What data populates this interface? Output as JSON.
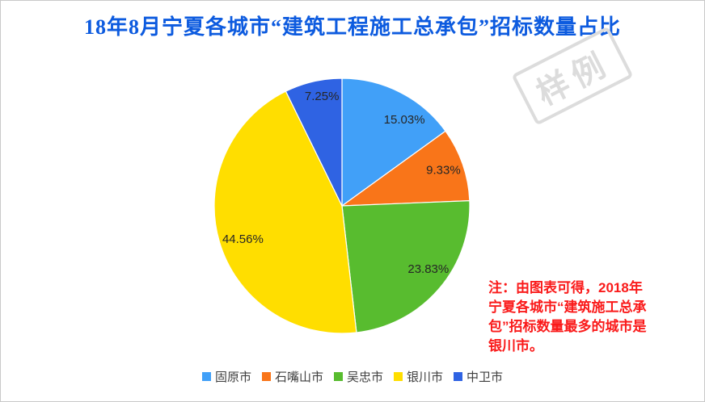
{
  "title": {
    "text": "18年8月宁夏各城市“建筑工程施工总承包”招标数量占比",
    "color": "#0d5bdf"
  },
  "watermark": {
    "text": "样例",
    "color": "#dcdcdc"
  },
  "chart_data": {
    "type": "pie",
    "title": "18年8月宁夏各城市“建筑工程施工总承包”招标数量占比",
    "categories": [
      "固原市",
      "石嘴山市",
      "吴忠市",
      "银川市",
      "中卫市"
    ],
    "values": [
      15.03,
      9.33,
      23.83,
      44.56,
      7.25
    ],
    "unit": "%",
    "labels": [
      "15.03%",
      "9.33%",
      "23.83%",
      "44.56%",
      "7.25%"
    ],
    "colors": [
      "#41a0f8",
      "#f97519",
      "#58bc2f",
      "#ffde00",
      "#2f63e3"
    ],
    "start_angle_deg": 0,
    "direction": "clockwise",
    "legend_position": "bottom",
    "slice_border_color": "#ffffff",
    "label_layout": {
      "angles_deg": [
        36,
        70.9,
        126.4,
        251.2,
        349.6
      ],
      "radius_frac": [
        0.83,
        0.84,
        0.84,
        0.82,
        0.87
      ]
    }
  },
  "note": {
    "color": "#fa1a1a",
    "lines": [
      "注：由图表可得，2018年",
      "宁夏各城市“建筑施工总承",
      "包”招标数量最多的城市是",
      "银川市。"
    ]
  }
}
